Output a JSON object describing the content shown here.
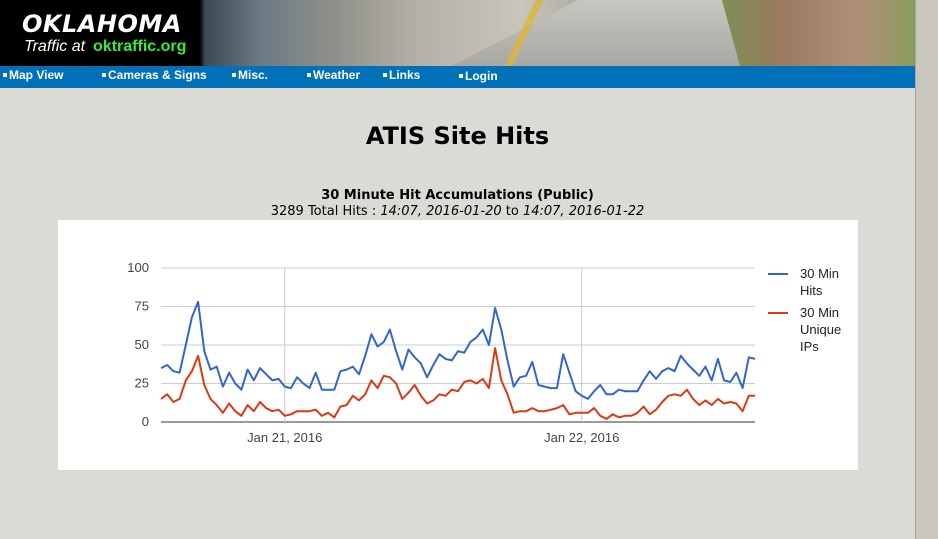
{
  "header": {
    "logo_title": "OKLAHOMA",
    "logo_prefix": "Traffic at",
    "logo_url": "oktraffic.org"
  },
  "nav": {
    "items": [
      "Map View",
      "Cameras & Signs",
      "Misc.",
      "Weather",
      "Links",
      "Login"
    ]
  },
  "page": {
    "title": "ATIS Site Hits",
    "chart_heading": "30 Minute Hit Accumulations (Public)",
    "summary_prefix": "3289 Total Hits : ",
    "start": "14:07, 2016-01-20",
    "between": " to ",
    "end": "14:07, 2016-01-22"
  },
  "colors": {
    "nav_bg": "#0071b8",
    "series_hits": "#3366cc",
    "series_unique": "#dc3912"
  },
  "chart_data": {
    "type": "line",
    "x_start": "2016-01-20 14:00",
    "x_interval_minutes": 30,
    "xtick_labels": [
      "Jan 21, 2016",
      "Jan 22, 2016"
    ],
    "yticks": [
      0,
      25,
      50,
      75,
      100
    ],
    "ylim": [
      0,
      100
    ],
    "grid": true,
    "legend_position": "right",
    "series": [
      {
        "name": "30 Min Hits",
        "color": "#3366cc",
        "values": [
          35,
          37,
          33,
          32,
          50,
          68,
          78,
          46,
          34,
          36,
          23,
          32,
          25,
          21,
          34,
          27,
          35,
          31,
          27,
          28,
          23,
          22,
          29,
          25,
          22,
          32,
          21,
          21,
          21,
          33,
          34,
          36,
          31,
          43,
          57,
          49,
          52,
          60,
          46,
          34,
          47,
          42,
          38,
          29,
          37,
          44,
          41,
          40,
          46,
          45,
          52,
          55,
          60,
          50,
          74,
          60,
          40,
          23,
          29,
          30,
          39,
          24,
          23,
          22,
          22,
          44,
          32,
          20,
          17,
          15,
          20,
          24,
          18,
          18,
          21,
          20,
          20,
          20,
          27,
          33,
          28,
          33,
          35,
          33,
          43,
          38,
          34,
          30,
          36,
          27,
          41,
          27,
          26,
          32,
          22,
          42,
          41
        ]
      },
      {
        "name": "30 Min Unique IPs",
        "color": "#dc3912",
        "values": [
          15,
          18,
          13,
          15,
          27,
          33,
          43,
          24,
          15,
          11,
          6,
          12,
          7,
          4,
          11,
          7,
          13,
          9,
          7,
          8,
          4,
          5,
          7,
          7,
          7,
          8,
          4,
          6,
          3,
          10,
          11,
          17,
          14,
          18,
          27,
          22,
          30,
          29,
          25,
          15,
          19,
          24,
          17,
          12,
          14,
          18,
          17,
          21,
          20,
          26,
          27,
          25,
          28,
          22,
          48,
          27,
          18,
          6,
          7,
          7,
          9,
          7,
          7,
          8,
          9,
          11,
          5,
          6,
          6,
          6,
          9,
          4,
          2,
          5,
          3,
          4,
          4,
          6,
          10,
          5,
          8,
          13,
          17,
          18,
          17,
          21,
          15,
          11,
          14,
          11,
          15,
          12,
          13,
          12,
          7,
          17,
          17
        ]
      }
    ]
  }
}
